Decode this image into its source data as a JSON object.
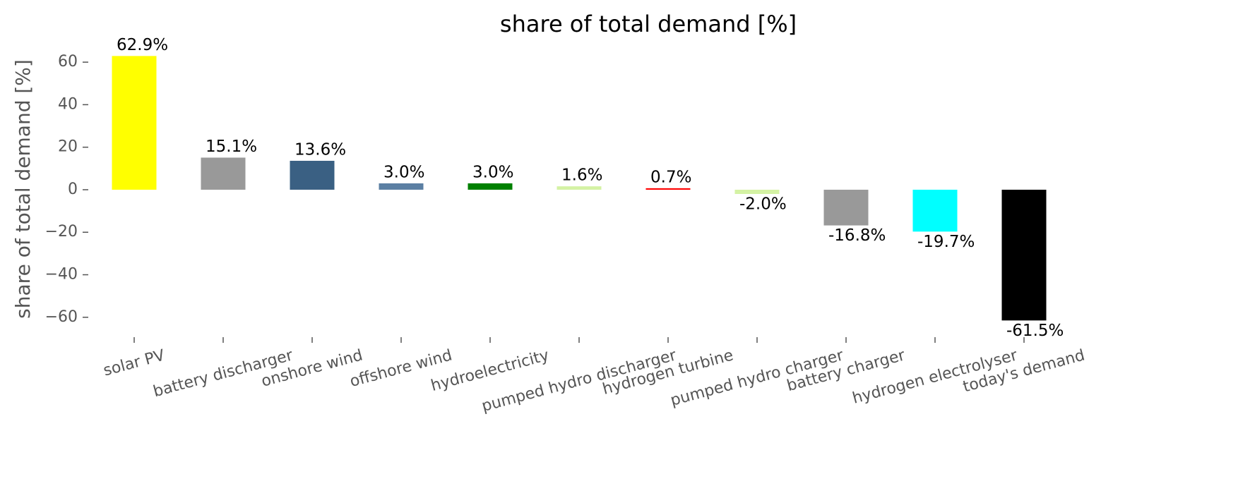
{
  "chart_data": {
    "type": "bar",
    "title": "share of total demand [%]",
    "ylabel": "share of total demand [%]",
    "categories": [
      "solar PV",
      "battery discharger",
      "onshore wind",
      "offshore wind",
      "hydroelectricity",
      "pumped hydro discharger",
      "hydrogen turbine",
      "pumped hydro charger",
      "battery charger",
      "hydrogen electrolyser",
      "today's demand"
    ],
    "values": [
      62.9,
      15.1,
      13.6,
      3.0,
      3.0,
      1.6,
      0.7,
      -2.0,
      -16.8,
      -19.7,
      -61.5
    ],
    "value_labels": [
      "62.9%",
      "15.1%",
      "13.6%",
      "3.0%",
      "3.0%",
      "1.6%",
      "0.7%",
      "-2.0%",
      "-16.8%",
      "-19.7%",
      "-61.5%"
    ],
    "colors": [
      "#ffff00",
      "#999999",
      "#3a6083",
      "#5b7fa3",
      "#008000",
      "#d4f2a4",
      "#ff0000",
      "#d4f2a4",
      "#999999",
      "#00ffff",
      "#000000"
    ],
    "ylim": [
      -67.7,
      69.1
    ],
    "yticks": [
      {
        "value": -60,
        "label": "−60"
      },
      {
        "value": -40,
        "label": "−40"
      },
      {
        "value": -20,
        "label": "−20"
      },
      0,
      20,
      40,
      60
    ],
    "grid": false
  }
}
